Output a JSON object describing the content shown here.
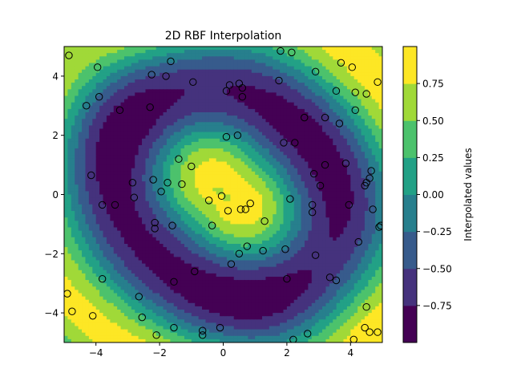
{
  "chart_data": {
    "type": "heatmap",
    "subtype": "filled-contour-with-scatter",
    "title": "2D RBF Interpolation",
    "xlabel": "",
    "ylabel": "",
    "xlim": [
      -5,
      5
    ],
    "ylim": [
      -5,
      5
    ],
    "x_ticks": [
      -4,
      -2,
      0,
      2,
      4
    ],
    "y_ticks": [
      -4,
      -2,
      0,
      2,
      4
    ],
    "grid": false,
    "colormap": "viridis",
    "colorbar": {
      "label": "Interpolated values",
      "range": [
        -1.0,
        1.0
      ],
      "ticks": [
        0.75,
        0.5,
        0.25,
        0.0,
        -0.25,
        -0.5,
        -0.75
      ],
      "tick_labels": [
        "0.75",
        "0.50",
        "0.25",
        "0.00",
        "−0.25",
        "−0.50",
        "−0.75"
      ]
    },
    "scatter_style": {
      "marker": "circle",
      "facecolor": "none",
      "edgecolor": "#000000"
    },
    "points": [
      [
        -4.85,
        4.7
      ],
      [
        -3.95,
        4.3
      ],
      [
        -2.25,
        4.05
      ],
      [
        -1.8,
        4.0
      ],
      [
        -1.65,
        4.5
      ],
      [
        -0.95,
        3.8
      ],
      [
        -4.3,
        3.0
      ],
      [
        -3.9,
        3.3
      ],
      [
        -3.25,
        2.85
      ],
      [
        -2.3,
        2.95
      ],
      [
        0.1,
        3.5
      ],
      [
        0.2,
        3.7
      ],
      [
        0.5,
        3.75
      ],
      [
        0.6,
        3.6
      ],
      [
        0.6,
        3.3
      ],
      [
        1.75,
        3.85
      ],
      [
        1.8,
        4.85
      ],
      [
        2.15,
        4.8
      ],
      [
        2.9,
        4.15
      ],
      [
        3.7,
        4.45
      ],
      [
        4.05,
        4.3
      ],
      [
        4.15,
        3.45
      ],
      [
        4.5,
        3.4
      ],
      [
        4.85,
        3.8
      ],
      [
        3.55,
        3.5
      ],
      [
        4.15,
        2.85
      ],
      [
        2.55,
        2.6
      ],
      [
        3.2,
        2.6
      ],
      [
        3.65,
        2.4
      ],
      [
        0.1,
        1.95
      ],
      [
        0.45,
        2.0
      ],
      [
        1.9,
        1.75
      ],
      [
        2.25,
        1.75
      ],
      [
        -1.4,
        1.2
      ],
      [
        -1.0,
        0.95
      ],
      [
        -4.15,
        0.65
      ],
      [
        -2.2,
        0.5
      ],
      [
        -2.85,
        0.4
      ],
      [
        -1.75,
        0.4
      ],
      [
        -1.3,
        0.35
      ],
      [
        -1.95,
        0.1
      ],
      [
        -2.8,
        -0.1
      ],
      [
        -0.05,
        -0.05
      ],
      [
        -0.45,
        -0.2
      ],
      [
        3.05,
        0.3
      ],
      [
        2.85,
        0.7
      ],
      [
        3.2,
        1.0
      ],
      [
        3.85,
        1.05
      ],
      [
        4.5,
        0.4
      ],
      [
        4.45,
        0.3
      ],
      [
        4.65,
        0.8
      ],
      [
        4.6,
        0.55
      ],
      [
        -3.8,
        -0.35
      ],
      [
        -3.4,
        -0.35
      ],
      [
        0.15,
        -0.55
      ],
      [
        0.55,
        -0.5
      ],
      [
        0.7,
        -0.5
      ],
      [
        0.85,
        -0.3
      ],
      [
        2.1,
        -0.15
      ],
      [
        2.8,
        -0.35
      ],
      [
        2.8,
        -0.6
      ],
      [
        3.95,
        -0.35
      ],
      [
        4.7,
        -0.5
      ],
      [
        4.95,
        -1.05
      ],
      [
        4.9,
        -1.1
      ],
      [
        -2.15,
        -0.95
      ],
      [
        -2.15,
        -1.15
      ],
      [
        -1.6,
        -1.05
      ],
      [
        -0.35,
        -1.05
      ],
      [
        1.3,
        -0.9
      ],
      [
        0.75,
        -1.75
      ],
      [
        0.5,
        -2.0
      ],
      [
        0.25,
        -2.35
      ],
      [
        1.25,
        -1.9
      ],
      [
        1.95,
        -1.85
      ],
      [
        2.9,
        -2.05
      ],
      [
        4.25,
        -1.6
      ],
      [
        -3.8,
        -2.85
      ],
      [
        -1.55,
        -2.95
      ],
      [
        -0.9,
        -2.6
      ],
      [
        2.0,
        -2.85
      ],
      [
        3.35,
        -2.8
      ],
      [
        3.55,
        -2.9
      ],
      [
        -4.9,
        -3.35
      ],
      [
        -2.65,
        -3.45
      ],
      [
        -4.75,
        -3.95
      ],
      [
        -4.1,
        -4.1
      ],
      [
        -2.55,
        -4.15
      ],
      [
        -2.1,
        -4.75
      ],
      [
        -1.55,
        -4.5
      ],
      [
        -0.65,
        -4.6
      ],
      [
        -0.65,
        -4.75
      ],
      [
        -0.1,
        -4.5
      ],
      [
        2.2,
        -4.9
      ],
      [
        2.65,
        -4.7
      ],
      [
        4.5,
        -3.8
      ],
      [
        4.45,
        -4.5
      ],
      [
        4.6,
        -4.65
      ],
      [
        4.85,
        -4.65
      ],
      [
        4.1,
        -4.9
      ]
    ]
  }
}
